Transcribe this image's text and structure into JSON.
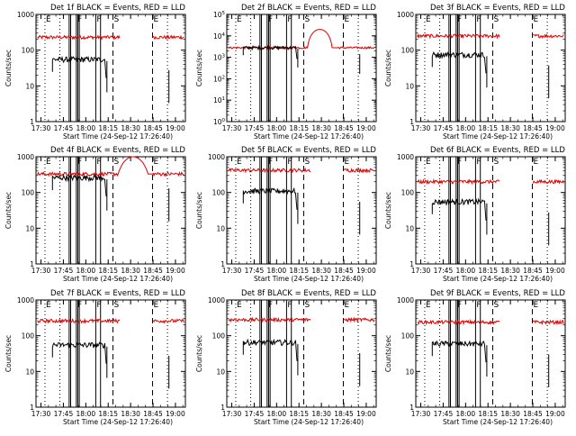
{
  "colors": {
    "events": "#000000",
    "lld": "#dd0000",
    "axis": "#000000",
    "background": "#ffffff"
  },
  "common": {
    "ylabel": "Counts/sec",
    "xlabel": "Start Time (24-Sep-12 17:26:40)",
    "x_ticks": [
      {
        "t": 3.33,
        "label": "17:30"
      },
      {
        "t": 18.33,
        "label": "17:45"
      },
      {
        "t": 33.33,
        "label": "18:00"
      },
      {
        "t": 48.33,
        "label": "18:15"
      },
      {
        "t": 63.33,
        "label": "18:30"
      },
      {
        "t": 78.33,
        "label": "18:45"
      },
      {
        "t": 93.33,
        "label": "19:00"
      }
    ],
    "xlim_minutes": [
      0,
      100
    ],
    "y_scale": "log"
  },
  "chart_data": [
    {
      "type": "line",
      "title": "Det 1f BLACK = Events, RED = LLD",
      "ylim": [
        1,
        1000
      ],
      "y_ticks": [
        {
          "v": 1,
          "label": "1"
        },
        {
          "v": 10,
          "label": "10"
        },
        {
          "v": 100,
          "label": "100"
        },
        {
          "v": 1000,
          "label": "1000"
        }
      ],
      "events_level": 55,
      "lld_level": 230,
      "lld_bump": null,
      "series": [
        {
          "name": "BLACK = Events"
        },
        {
          "name": "RED = LLD"
        }
      ]
    },
    {
      "type": "line",
      "title": "Det 2f BLACK = Events, RED = LLD",
      "ylim": [
        1,
        100000
      ],
      "y_ticks": [
        {
          "v": 1,
          "label": "10^0"
        },
        {
          "v": 10,
          "label": "10^1"
        },
        {
          "v": 100,
          "label": "10^2"
        },
        {
          "v": 1000,
          "label": "10^3"
        },
        {
          "v": 10000,
          "label": "10^4"
        },
        {
          "v": 100000,
          "label": "10^5"
        }
      ],
      "events_level": 2800,
      "lld_level": 2800,
      "lld_bump": {
        "start": 54,
        "end": 73,
        "peak": 20000
      },
      "series": [
        {
          "name": "BLACK = Events"
        },
        {
          "name": "RED = LLD"
        }
      ]
    },
    {
      "type": "line",
      "title": "Det 3f BLACK = Events, RED = LLD",
      "ylim": [
        1,
        1000
      ],
      "y_ticks": [
        {
          "v": 1,
          "label": "1"
        },
        {
          "v": 10,
          "label": "10"
        },
        {
          "v": 100,
          "label": "100"
        },
        {
          "v": 1000,
          "label": "1000"
        }
      ],
      "events_level": 75,
      "lld_level": 250,
      "lld_bump": null,
      "series": [
        {
          "name": "BLACK = Events"
        },
        {
          "name": "RED = LLD"
        }
      ]
    },
    {
      "type": "line",
      "title": "Det 4f BLACK = Events, RED = LLD",
      "ylim": [
        1,
        1000
      ],
      "y_ticks": [
        {
          "v": 1,
          "label": "1"
        },
        {
          "v": 10,
          "label": "10"
        },
        {
          "v": 100,
          "label": "100"
        },
        {
          "v": 1000,
          "label": "1000"
        }
      ],
      "events_level": 260,
      "lld_level": 330,
      "lld_bump": {
        "start": 55,
        "end": 78,
        "peak": 1000
      },
      "series": [
        {
          "name": "BLACK = Events"
        },
        {
          "name": "RED = LLD"
        }
      ]
    },
    {
      "type": "line",
      "title": "Det 5f BLACK = Events, RED = LLD",
      "ylim": [
        1,
        1000
      ],
      "y_ticks": [
        {
          "v": 1,
          "label": "1"
        },
        {
          "v": 10,
          "label": "10"
        },
        {
          "v": 100,
          "label": "100"
        },
        {
          "v": 1000,
          "label": "1000"
        }
      ],
      "events_level": 110,
      "lld_level": 420,
      "lld_bump": null,
      "series": [
        {
          "name": "BLACK = Events"
        },
        {
          "name": "RED = LLD"
        }
      ]
    },
    {
      "type": "line",
      "title": "Det 6f BLACK = Events, RED = LLD",
      "ylim": [
        1,
        1000
      ],
      "y_ticks": [
        {
          "v": 1,
          "label": "1"
        },
        {
          "v": 10,
          "label": "10"
        },
        {
          "v": 100,
          "label": "100"
        },
        {
          "v": 1000,
          "label": "1000"
        }
      ],
      "events_level": 55,
      "lld_level": 200,
      "lld_bump": null,
      "series": [
        {
          "name": "BLACK = Events"
        },
        {
          "name": "RED = LLD"
        }
      ]
    },
    {
      "type": "line",
      "title": "Det 7f BLACK = Events, RED = LLD",
      "ylim": [
        1,
        1000
      ],
      "y_ticks": [
        {
          "v": 1,
          "label": "1"
        },
        {
          "v": 10,
          "label": "10"
        },
        {
          "v": 100,
          "label": "100"
        },
        {
          "v": 1000,
          "label": "1000"
        }
      ],
      "events_level": 55,
      "lld_level": 260,
      "lld_bump": null,
      "series": [
        {
          "name": "BLACK = Events"
        },
        {
          "name": "RED = LLD"
        }
      ]
    },
    {
      "type": "line",
      "title": "Det 8f BLACK = Events, RED = LLD",
      "ylim": [
        1,
        1000
      ],
      "y_ticks": [
        {
          "v": 1,
          "label": "1"
        },
        {
          "v": 10,
          "label": "10"
        },
        {
          "v": 100,
          "label": "100"
        },
        {
          "v": 1000,
          "label": "1000"
        }
      ],
      "events_level": 65,
      "lld_level": 280,
      "lld_bump": null,
      "series": [
        {
          "name": "BLACK = Events"
        },
        {
          "name": "RED = LLD"
        }
      ]
    },
    {
      "type": "line",
      "title": "Det 9f BLACK = Events, RED = LLD",
      "ylim": [
        1,
        1000
      ],
      "y_ticks": [
        {
          "v": 1,
          "label": "1"
        },
        {
          "v": 10,
          "label": "10"
        },
        {
          "v": 100,
          "label": "100"
        },
        {
          "v": 1000,
          "label": "1000"
        }
      ],
      "events_level": 60,
      "lld_level": 240,
      "lld_bump": null,
      "series": [
        {
          "name": "BLACK = Events"
        },
        {
          "name": "RED = LLD"
        }
      ]
    }
  ],
  "markers": [
    {
      "t": 6,
      "style": "dotted",
      "label": "E"
    },
    {
      "t": 16,
      "style": "dotted",
      "label": ""
    },
    {
      "t": 22.2,
      "style": "solid",
      "label": ""
    },
    {
      "t": 23.2,
      "style": "solid",
      "label": ""
    },
    {
      "t": 27,
      "style": "solid",
      "label": "F"
    },
    {
      "t": 28,
      "style": "solid",
      "label": ""
    },
    {
      "t": 29,
      "style": "solid",
      "label": ""
    },
    {
      "t": 40,
      "style": "solid",
      "label": "F"
    },
    {
      "t": 43.2,
      "style": "solid",
      "label": ""
    },
    {
      "t": 51.5,
      "style": "dashed",
      "label": "S"
    },
    {
      "t": 78,
      "style": "dashed",
      "label": "E"
    },
    {
      "t": 88,
      "style": "dotted",
      "label": ""
    }
  ]
}
